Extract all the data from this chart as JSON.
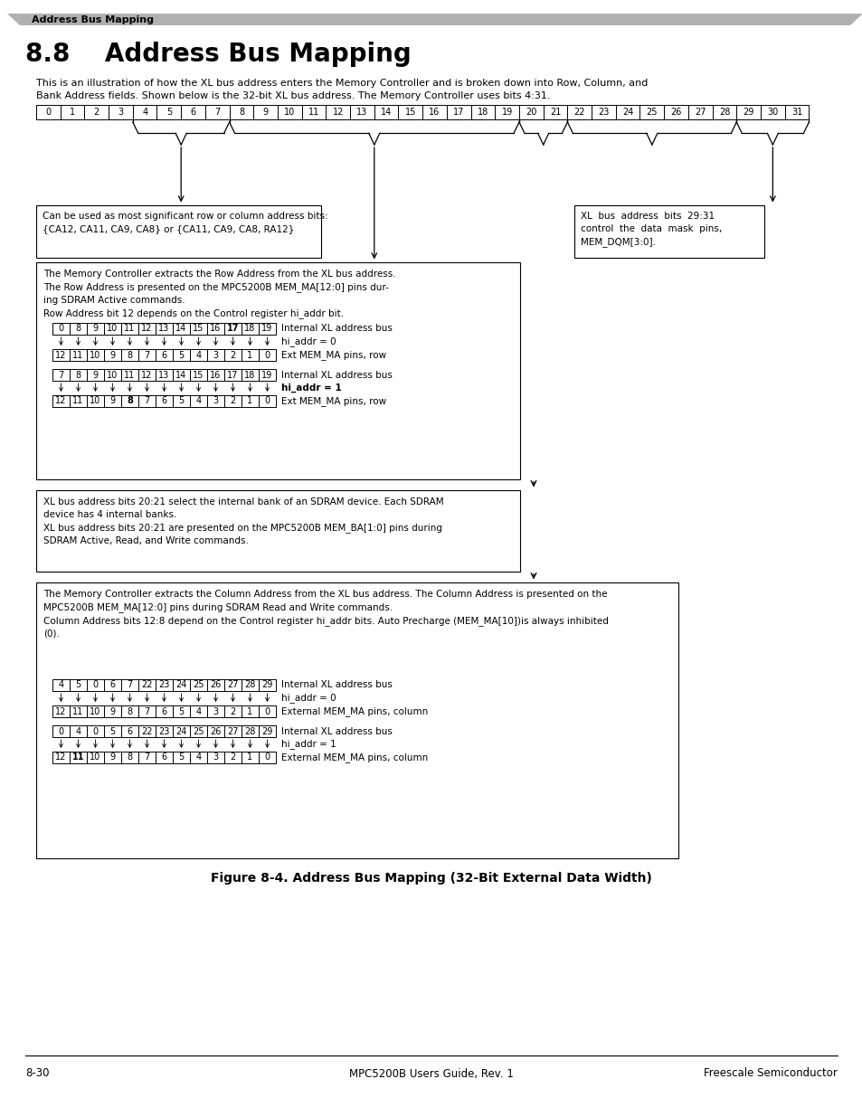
{
  "title": "8.8    Address Bus Mapping",
  "section_label": "Address Bus Mapping",
  "intro_text": "This is an illustration of how the XL bus address enters the Memory Controller and is broken down into Row, Column, and\nBank Address fields. Shown below is the 32-bit XL bus address. The Memory Controller uses bits 4:31.",
  "top_bus_bits": [
    "0",
    "1",
    "2",
    "3",
    "4",
    "5",
    "6",
    "7",
    "8",
    "9",
    "10",
    "11",
    "12",
    "13",
    "14",
    "15",
    "16",
    "17",
    "18",
    "19",
    "20",
    "21",
    "22",
    "23",
    "24",
    "25",
    "26",
    "27",
    "28",
    "29",
    "30",
    "31"
  ],
  "box1_text": "Can be used as most significant row or column address bits:\n{CA12, CA11, CA9, CA8} or {CA11, CA9, CA8, RA12}",
  "box2_text": "XL  bus  address  bits  29:31\ncontrol  the  data  mask  pins,\nMEM_DQM[3:0].",
  "row_box_text": "The Memory Controller extracts the Row Address from the XL bus address.\nThe Row Address is presented on the MPC5200B MEM_MA[12:0] pins dur-\ning SDRAM Active commands.\nRow Address bit 12 depends on the Control register hi_addr bit.",
  "row_bus1_top": [
    "0",
    "8",
    "9",
    "10",
    "11",
    "12",
    "13",
    "14",
    "15",
    "16",
    "17",
    "18",
    "19"
  ],
  "row_bus1_bot": [
    "12",
    "11",
    "10",
    "9",
    "8",
    "7",
    "6",
    "5",
    "4",
    "3",
    "2",
    "1",
    "0"
  ],
  "row_label1a": "Internal XL address bus",
  "row_label1b": "hi_addr = 0",
  "row_label1c": "Ext MEM_MA pins, row",
  "row_bus2_top": [
    "7",
    "8",
    "9",
    "10",
    "11",
    "12",
    "13",
    "14",
    "15",
    "16",
    "17",
    "18",
    "19"
  ],
  "row_bus2_bot": [
    "12",
    "11",
    "10",
    "9",
    "8",
    "7",
    "6",
    "5",
    "4",
    "3",
    "2",
    "1",
    "0"
  ],
  "row_label2a": "Internal XL address bus",
  "row_label2b": "hi_addr = 1",
  "row_label2c": "Ext MEM_MA pins, row",
  "bank_box_text": "XL bus address bits 20:21 select the internal bank of an SDRAM device. Each SDRAM\ndevice has 4 internal banks.\nXL bus address bits 20:21 are presented on the MPC5200B MEM_BA[1:0] pins during\nSDRAM Active, Read, and Write commands.",
  "col_box_text": "The Memory Controller extracts the Column Address from the XL bus address. The Column Address is presented on the\nMPC5200B MEM_MA[12:0] pins during SDRAM Read and Write commands.\nColumn Address bits 12:8 depend on the Control register hi_addr bits. Auto Precharge (MEM_MA[10])is always inhibited\n(0).",
  "col_bus1_top": [
    "4",
    "5",
    "0",
    "6",
    "7",
    "22",
    "23",
    "24",
    "25",
    "26",
    "27",
    "28",
    "29"
  ],
  "col_bus1_bot": [
    "12",
    "11",
    "10",
    "9",
    "8",
    "7",
    "6",
    "5",
    "4",
    "3",
    "2",
    "1",
    "0"
  ],
  "col_label1a": "Internal XL address bus",
  "col_label1b": "hi_addr = 0",
  "col_label1c": "External MEM_MA pins, column",
  "col_bus2_top": [
    "0",
    "4",
    "0",
    "5",
    "6",
    "22",
    "23",
    "24",
    "25",
    "26",
    "27",
    "28",
    "29"
  ],
  "col_bus2_bot": [
    "12",
    "11",
    "10",
    "9",
    "8",
    "7",
    "6",
    "5",
    "4",
    "3",
    "2",
    "1",
    "0"
  ],
  "col_label2a": "Internal XL address bus",
  "col_label2b": "hi_addr = 1",
  "col_label2c": "External MEM_MA pins, column",
  "figure_caption": "Figure 8-4. Address Bus Mapping (32-Bit External Data Width)",
  "footer_left": "8-30",
  "footer_center": "MPC5200B Users Guide, Rev. 1",
  "footer_right": "Freescale Semiconductor",
  "bg_color": "#ffffff",
  "header_bg": "#aaaaaa"
}
